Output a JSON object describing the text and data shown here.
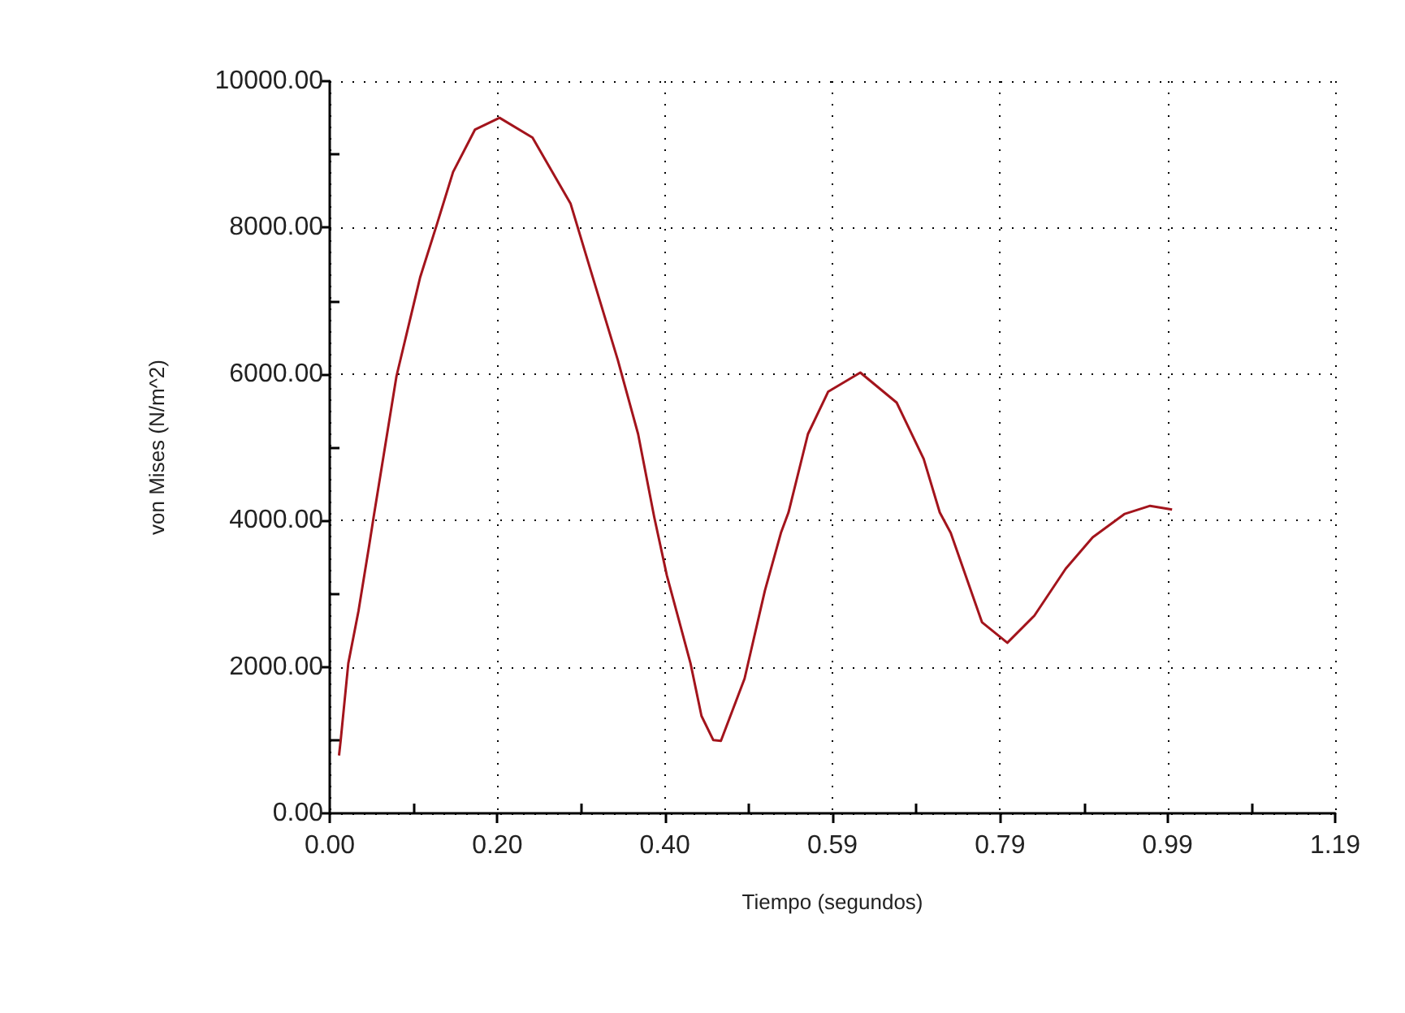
{
  "chart_data": {
    "type": "line",
    "xlabel": "Tiempo (segundos)",
    "ylabel": "von Mises (N/m^2)",
    "xlim": [
      0,
      1.19
    ],
    "xticks": [
      {
        "value": 0,
        "label": "0.00"
      },
      {
        "value": 0.0992,
        "label": null
      },
      {
        "value": 0.1983,
        "label": "0.20"
      },
      {
        "value": 0.2975,
        "label": null
      },
      {
        "value": 0.3967,
        "label": "0.40"
      },
      {
        "value": 0.4958,
        "label": null
      },
      {
        "value": 0.595,
        "label": "0.59"
      },
      {
        "value": 0.6942,
        "label": null
      },
      {
        "value": 0.7933,
        "label": "0.79"
      },
      {
        "value": 0.8925,
        "label": null
      },
      {
        "value": 0.9917,
        "label": "0.99"
      },
      {
        "value": 1.0908,
        "label": null
      },
      {
        "value": 1.19,
        "label": "1.19"
      }
    ],
    "ylim": [
      0,
      10000
    ],
    "yticks": [
      {
        "value": 0,
        "label": "0.00"
      },
      {
        "value": 1000,
        "label": null
      },
      {
        "value": 2000,
        "label": "2000.00"
      },
      {
        "value": 3000,
        "label": null
      },
      {
        "value": 4000,
        "label": "4000.00"
      },
      {
        "value": 5000,
        "label": null
      },
      {
        "value": 6000,
        "label": "6000.00"
      },
      {
        "value": 7000,
        "label": null
      },
      {
        "value": 8000,
        "label": "8000.00"
      },
      {
        "value": 9000,
        "label": null
      },
      {
        "value": 10000,
        "label": "10000.00"
      }
    ],
    "grid": true,
    "marker": "none",
    "line_style": "solid",
    "series": [
      {
        "color": "#a3141c",
        "x": [
          0.011,
          0.013,
          0.022,
          0.034,
          0.047,
          0.052,
          0.079,
          0.107,
          0.127,
          0.146,
          0.172,
          0.201,
          0.24,
          0.285,
          0.309,
          0.341,
          0.365,
          0.384,
          0.399,
          0.427,
          0.44,
          0.454,
          0.463,
          0.491,
          0.515,
          0.534,
          0.543,
          0.566,
          0.59,
          0.628,
          0.671,
          0.703,
          0.722,
          0.735,
          0.772,
          0.802,
          0.834,
          0.871,
          0.903,
          0.941,
          0.971,
          0.997
        ],
        "values": [
          790,
          1000,
          2050,
          2760,
          3680,
          4050,
          5970,
          7320,
          8050,
          8760,
          9340,
          9500,
          9230,
          8330,
          7410,
          6190,
          5180,
          4050,
          3250,
          2050,
          1330,
          1000,
          990,
          1840,
          3040,
          3830,
          4110,
          5180,
          5760,
          6020,
          5610,
          4840,
          4110,
          3830,
          2610,
          2330,
          2700,
          3340,
          3770,
          4090,
          4200,
          4150
        ]
      }
    ]
  }
}
